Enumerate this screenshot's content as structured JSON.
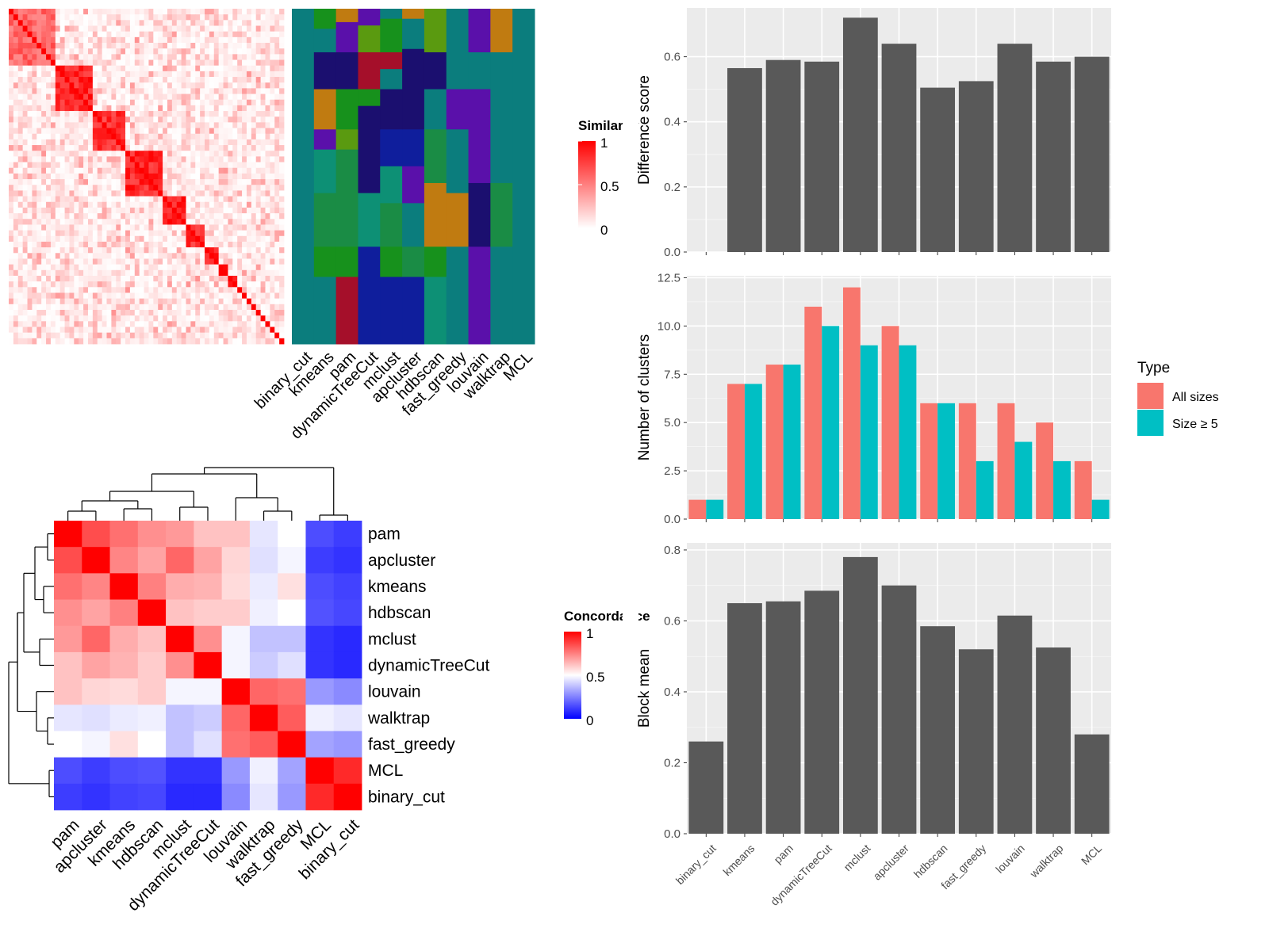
{
  "chart_data": [
    {
      "type": "heatmap",
      "id": "similarity_heatmap",
      "legend_title": "Similarity",
      "legend_ticks": [
        "1",
        "0.5",
        "0"
      ],
      "colors": {
        "low": "#ffffff",
        "high": "#ff0000"
      },
      "block_sizes": [
        10,
        8,
        7,
        8,
        5,
        4,
        3,
        2,
        2,
        1,
        1,
        1,
        1,
        1,
        1,
        1,
        1,
        1,
        1
      ],
      "within_block_mean": [
        0.6,
        0.85,
        0.8,
        0.85,
        0.9,
        0.8,
        0.85,
        0.9,
        0.9,
        1,
        1,
        1,
        1,
        1,
        1,
        1,
        1,
        1,
        1
      ]
    },
    {
      "type": "heatmap",
      "id": "membership_heatmap",
      "columns": [
        "binary_cut",
        "kmeans",
        "pam",
        "dynamicTreeCut",
        "mclust",
        "apcluster",
        "hdbscan",
        "fast_greedy",
        "louvain",
        "walktrap",
        "MCL"
      ],
      "palette": [
        "#0b7d7d",
        "#17911c",
        "#c07b11",
        "#1b0f6f",
        "#5a10aa",
        "#5a9a10",
        "#a50f2a",
        "#0d9075",
        "#1a8c45",
        "#0f1e9c"
      ],
      "segments": [
        [
          [
            0,
            100
          ]
        ],
        [
          [
            0,
            6
          ],
          [
            6,
            13
          ],
          [
            13,
            24
          ],
          [
            24,
            36
          ],
          [
            36,
            42
          ],
          [
            42,
            55
          ],
          [
            55,
            71
          ],
          [
            71,
            80
          ],
          [
            80,
            100
          ]
        ],
        [
          [
            0,
            4
          ],
          [
            4,
            13
          ],
          [
            13,
            24
          ],
          [
            24,
            36
          ],
          [
            36,
            42
          ],
          [
            42,
            55
          ],
          [
            55,
            71
          ],
          [
            71,
            80
          ],
          [
            80,
            100
          ]
        ],
        [
          [
            0,
            5
          ],
          [
            5,
            13
          ],
          [
            13,
            24
          ],
          [
            24,
            29
          ],
          [
            29,
            55
          ],
          [
            55,
            71
          ],
          [
            71,
            100
          ]
        ],
        [
          [
            0,
            3
          ],
          [
            3,
            13
          ],
          [
            13,
            18
          ],
          [
            18,
            24
          ],
          [
            24,
            36
          ],
          [
            36,
            47
          ],
          [
            47,
            58
          ],
          [
            58,
            71
          ],
          [
            71,
            80
          ],
          [
            80,
            100
          ]
        ],
        [
          [
            0,
            3
          ],
          [
            3,
            12
          ],
          [
            12,
            36
          ],
          [
            36,
            47
          ],
          [
            47,
            58
          ],
          [
            58,
            71
          ],
          [
            71,
            80
          ],
          [
            80,
            100
          ]
        ],
        [
          [
            0,
            13
          ],
          [
            13,
            24
          ],
          [
            24,
            36
          ],
          [
            36,
            52
          ],
          [
            52,
            71
          ],
          [
            71,
            80
          ],
          [
            80,
            100
          ]
        ],
        [
          [
            0,
            24
          ],
          [
            24,
            36
          ],
          [
            36,
            55
          ],
          [
            55,
            71
          ],
          [
            71,
            100
          ]
        ],
        [
          [
            0,
            13
          ],
          [
            13,
            24
          ],
          [
            24,
            52
          ],
          [
            52,
            71
          ],
          [
            71,
            100
          ]
        ],
        [
          [
            0,
            13
          ],
          [
            13,
            52
          ],
          [
            52,
            71
          ],
          [
            71,
            100
          ]
        ],
        [
          [
            0,
            100
          ]
        ]
      ],
      "segment_colors": [
        [
          0
        ],
        [
          1,
          0,
          3,
          2,
          4,
          7,
          8,
          1,
          0
        ],
        [
          2,
          4,
          3,
          1,
          5,
          8,
          8,
          1,
          6
        ],
        [
          4,
          5,
          6,
          1,
          3,
          7,
          9
        ],
        [
          0,
          1,
          6,
          0,
          3,
          9,
          7,
          8,
          1,
          9
        ],
        [
          2,
          0,
          3,
          9,
          4,
          0,
          8,
          9
        ],
        [
          5,
          3,
          0,
          8,
          2,
          1,
          7
        ],
        [
          0,
          4,
          0,
          2,
          0
        ],
        [
          4,
          0,
          4,
          3,
          4
        ],
        [
          2,
          0,
          8,
          0
        ],
        [
          0
        ]
      ]
    },
    {
      "type": "heatmap",
      "id": "concordance_heatmap",
      "legend_title": "Concordance",
      "legend_ticks": [
        "1",
        "0.5",
        "0"
      ],
      "rows": [
        "pam",
        "apcluster",
        "kmeans",
        "hdbscan",
        "mclust",
        "dynamicTreeCut",
        "louvain",
        "walktrap",
        "fast_greedy",
        "MCL",
        "binary_cut"
      ],
      "columns": [
        "pam",
        "apcluster",
        "kmeans",
        "hdbscan",
        "mclust",
        "dynamicTreeCut",
        "louvain",
        "walktrap",
        "fast_greedy",
        "MCL",
        "binary_cut"
      ],
      "values": [
        [
          1.0,
          0.85,
          0.78,
          0.72,
          0.7,
          0.62,
          0.62,
          0.45,
          0.5,
          0.15,
          0.12
        ],
        [
          0.85,
          1.0,
          0.74,
          0.68,
          0.8,
          0.68,
          0.58,
          0.44,
          0.48,
          0.12,
          0.1
        ],
        [
          0.78,
          0.74,
          1.0,
          0.75,
          0.66,
          0.65,
          0.57,
          0.46,
          0.56,
          0.15,
          0.13
        ],
        [
          0.72,
          0.68,
          0.75,
          1.0,
          0.62,
          0.6,
          0.6,
          0.47,
          0.5,
          0.16,
          0.14
        ],
        [
          0.7,
          0.8,
          0.66,
          0.62,
          1.0,
          0.72,
          0.48,
          0.38,
          0.38,
          0.1,
          0.08
        ],
        [
          0.62,
          0.68,
          0.65,
          0.6,
          0.72,
          1.0,
          0.48,
          0.4,
          0.44,
          0.1,
          0.08
        ],
        [
          0.62,
          0.58,
          0.57,
          0.6,
          0.48,
          0.48,
          1.0,
          0.8,
          0.78,
          0.3,
          0.27
        ],
        [
          0.45,
          0.44,
          0.46,
          0.47,
          0.38,
          0.4,
          0.8,
          1.0,
          0.82,
          0.47,
          0.45
        ],
        [
          0.5,
          0.48,
          0.56,
          0.5,
          0.38,
          0.44,
          0.78,
          0.82,
          1.0,
          0.32,
          0.3
        ],
        [
          0.15,
          0.12,
          0.15,
          0.16,
          0.1,
          0.1,
          0.3,
          0.47,
          0.32,
          1.0,
          0.92
        ],
        [
          0.12,
          0.1,
          0.13,
          0.14,
          0.08,
          0.08,
          0.27,
          0.45,
          0.3,
          0.92,
          1.0
        ]
      ],
      "colors": {
        "low": "#0000ff",
        "mid": "#ffffff",
        "high": "#ff0000"
      }
    },
    {
      "type": "bar",
      "id": "difference_score",
      "categories": [
        "binary_cut",
        "kmeans",
        "pam",
        "dynamicTreeCut",
        "mclust",
        "apcluster",
        "hdbscan",
        "fast_greedy",
        "louvain",
        "walktrap",
        "MCL"
      ],
      "values": [
        0,
        0.565,
        0.59,
        0.585,
        0.72,
        0.64,
        0.505,
        0.525,
        0.64,
        0.585,
        0.6
      ],
      "ylabel": "Difference score",
      "ylim": [
        0,
        0.75
      ],
      "yticks": [
        "0.0",
        "0.2",
        "0.4",
        "0.6"
      ],
      "bar_color": "#595959"
    },
    {
      "type": "bar",
      "id": "number_of_clusters",
      "categories": [
        "binary_cut",
        "kmeans",
        "pam",
        "dynamicTreeCut",
        "mclust",
        "apcluster",
        "hdbscan",
        "fast_greedy",
        "louvain",
        "walktrap",
        "MCL"
      ],
      "series": [
        {
          "name": "All sizes",
          "values": [
            1,
            7,
            8,
            11,
            12,
            10,
            6,
            6,
            6,
            5,
            3
          ],
          "color": "#f8766d"
        },
        {
          "name": "Size ≥ 5",
          "values": [
            1,
            7,
            8,
            10,
            9,
            9,
            6,
            3,
            4,
            3,
            1
          ],
          "color": "#00bfc4"
        }
      ],
      "ylabel": "Number of clusters",
      "ylim": [
        0,
        12.6
      ],
      "yticks": [
        "0.0",
        "2.5",
        "5.0",
        "7.5",
        "10.0",
        "12.5"
      ],
      "legend_title": "Type",
      "legend_position": "right"
    },
    {
      "type": "bar",
      "id": "block_mean",
      "categories": [
        "binary_cut",
        "kmeans",
        "pam",
        "dynamicTreeCut",
        "mclust",
        "apcluster",
        "hdbscan",
        "fast_greedy",
        "louvain",
        "walktrap",
        "MCL"
      ],
      "values": [
        0.26,
        0.65,
        0.655,
        0.685,
        0.78,
        0.7,
        0.585,
        0.52,
        0.615,
        0.525,
        0.28
      ],
      "ylabel": "Block mean",
      "ylim": [
        0,
        0.82
      ],
      "yticks": [
        "0.0",
        "0.2",
        "0.4",
        "0.6",
        "0.8"
      ],
      "bar_color": "#595959"
    }
  ]
}
